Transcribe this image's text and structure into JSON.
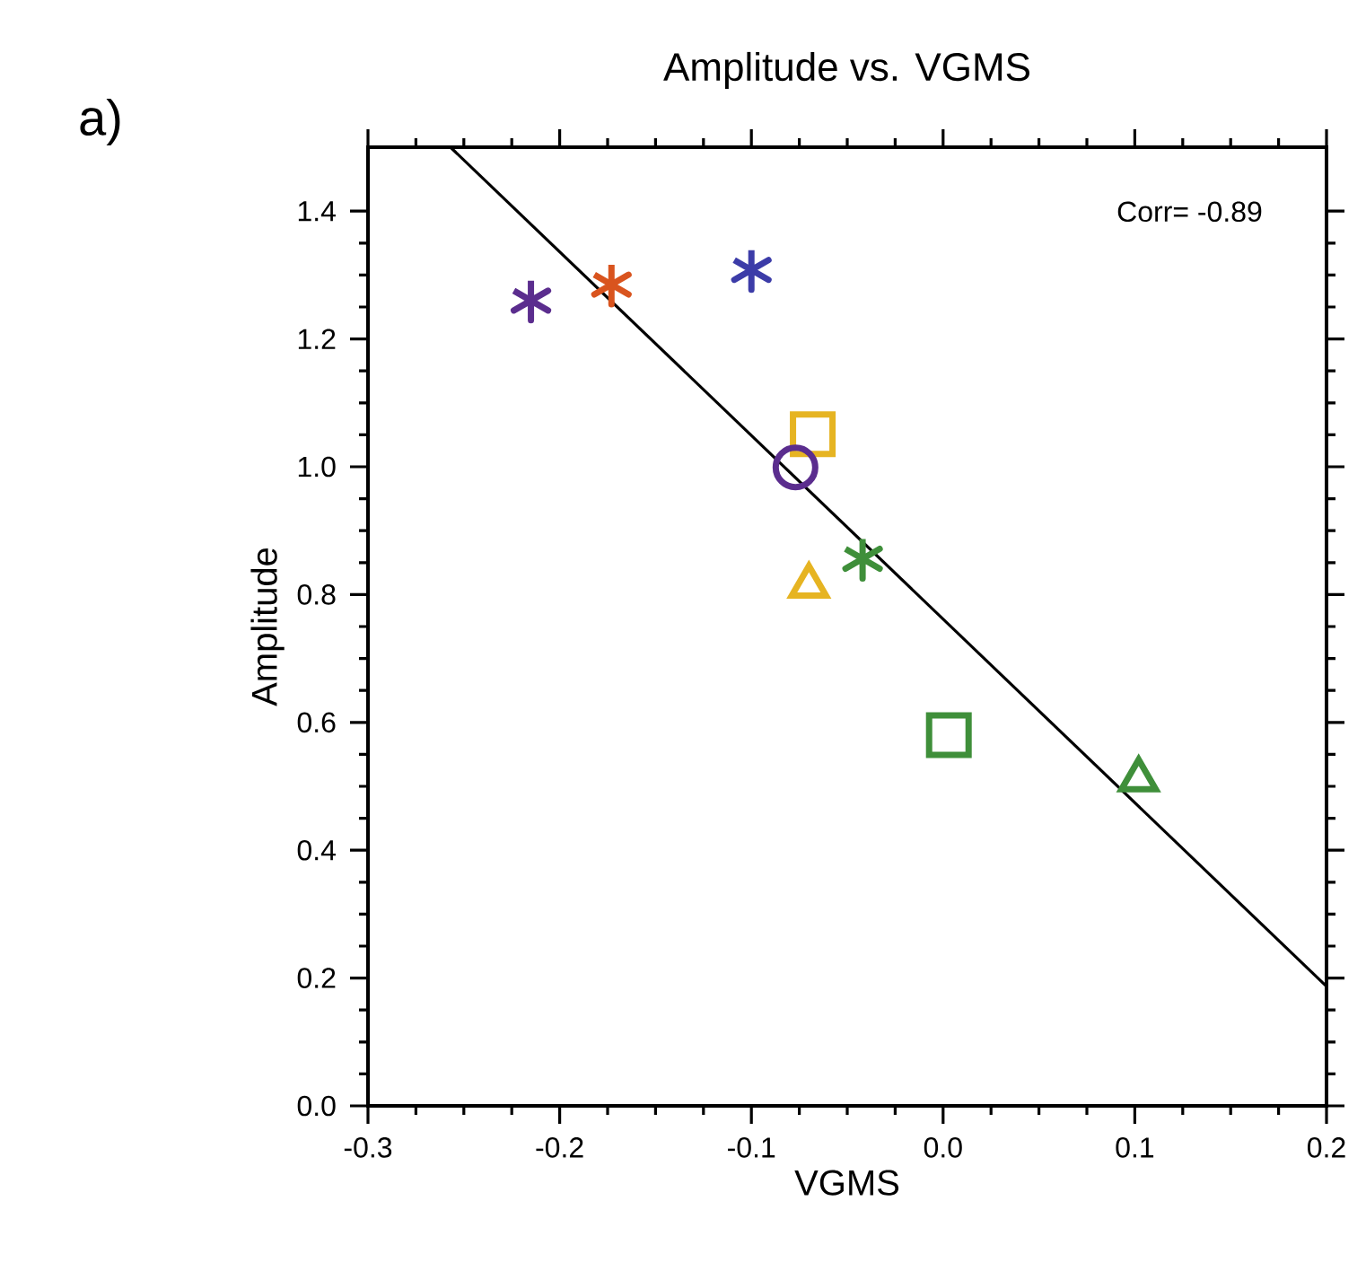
{
  "chart_data": {
    "type": "scatter",
    "title": "Amplitude vs. VGMS",
    "xlabel": "VGMS",
    "ylabel": "Amplitude",
    "xlim": [
      -0.3,
      0.2
    ],
    "ylim": [
      0,
      1.5
    ],
    "xticks": [
      -0.3,
      -0.2,
      -0.1,
      {
        "value": 0,
        "label": "0.0"
      },
      0.1,
      0.2
    ],
    "yticks": [
      {
        "value": 0,
        "label": "0.0"
      },
      0.2,
      0.4,
      0.6,
      0.8,
      {
        "value": 1,
        "label": "1.0"
      },
      1.2,
      1.4
    ],
    "annotations": [
      "a)",
      "Corr= -0.89"
    ],
    "series": [
      {
        "color": "#5b2d8e",
        "marker": "cross",
        "x": [
          -0.215
        ],
        "values": [
          1.26
        ]
      },
      {
        "color": "#d9541e",
        "marker": "cross",
        "x": [
          -0.173
        ],
        "values": [
          1.285
        ]
      },
      {
        "color": "#3c3ca8",
        "marker": "cross",
        "x": [
          -0.1
        ],
        "values": [
          1.308
        ]
      },
      {
        "color": "#e6b422",
        "marker": "square",
        "x": [
          -0.068
        ],
        "values": [
          1.051
        ]
      },
      {
        "color": "#5b2d8e",
        "marker": "circle",
        "x": [
          -0.077
        ],
        "values": [
          0.999
        ]
      },
      {
        "color": "#3f8f3a",
        "marker": "cross",
        "x": [
          -0.042
        ],
        "values": [
          0.856
        ]
      },
      {
        "color": "#e6b422",
        "marker": "triangle",
        "x": [
          -0.07
        ],
        "values": [
          0.814
        ]
      },
      {
        "color": "#3f8f3a",
        "marker": "square",
        "x": [
          0.003
        ],
        "values": [
          0.58
        ]
      },
      {
        "color": "#3f8f3a",
        "marker": "triangle",
        "x": [
          0.102
        ],
        "values": [
          0.511
        ]
      },
      {
        "type": "line",
        "color": "#000000",
        "marker": "none",
        "line_style": "solid",
        "x": [
          -0.257,
          0.2
        ],
        "values": [
          1.5,
          0.187
        ]
      }
    ]
  }
}
